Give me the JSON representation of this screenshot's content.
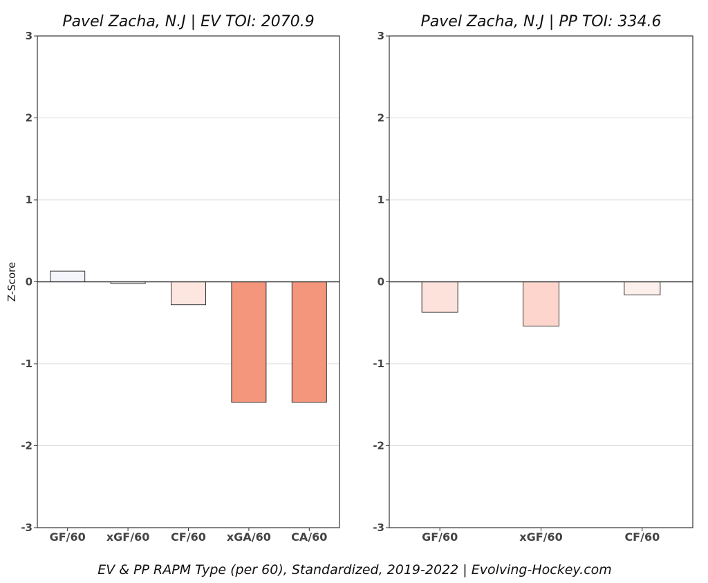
{
  "caption": "EV & PP RAPM Type (per 60), Standardized, 2019-2022    |    Evolving-Hockey.com",
  "chart_data": [
    {
      "type": "bar",
      "title": "Pavel Zacha, N.J  |  EV TOI: 2070.9",
      "ylabel": "Z-Score",
      "ylim": [
        -3,
        3
      ],
      "yticks": [
        "-3",
        "-2",
        "-1",
        "0",
        "1",
        "2",
        "3"
      ],
      "grid": true,
      "categories": [
        "GF/60",
        "xGF/60",
        "CF/60",
        "xGA/60",
        "CA/60"
      ],
      "values": [
        0.13,
        -0.02,
        -0.28,
        -1.47,
        -1.47
      ],
      "colors": [
        "#f4f4fb",
        "#f8f8f8",
        "#fde6e0",
        "#f4967c",
        "#f4967c"
      ]
    },
    {
      "type": "bar",
      "title": "Pavel Zacha, N.J  |  PP TOI: 334.6",
      "ylabel": "",
      "ylim": [
        -3,
        3
      ],
      "yticks": [
        "-3",
        "-2",
        "-1",
        "0",
        "1",
        "2",
        "3"
      ],
      "grid": true,
      "categories": [
        "GF/60",
        "xGF/60",
        "CF/60"
      ],
      "values": [
        -0.37,
        -0.54,
        -0.16
      ],
      "colors": [
        "#fde2dc",
        "#fdd5cc",
        "#fdf0ec"
      ]
    }
  ]
}
